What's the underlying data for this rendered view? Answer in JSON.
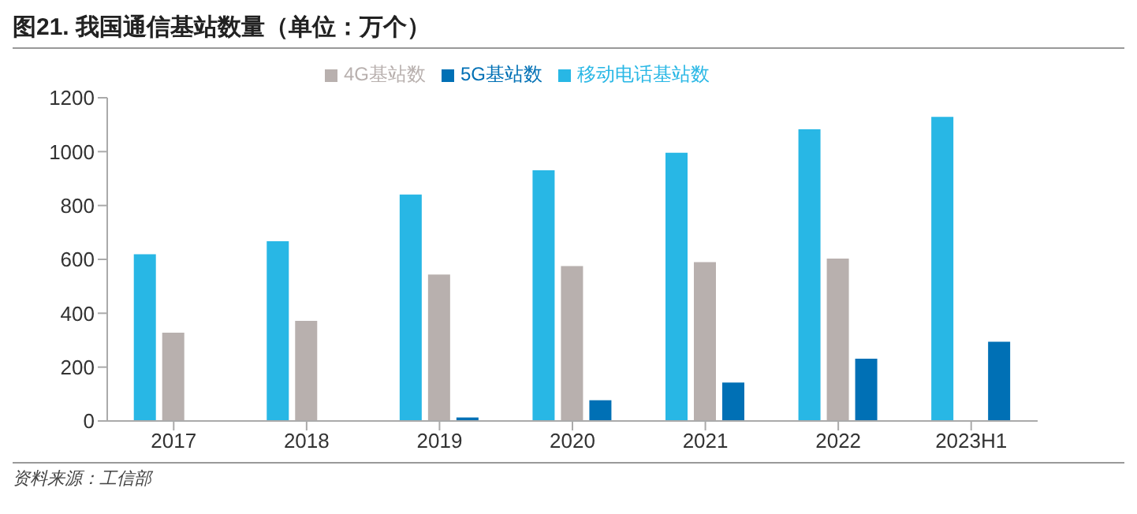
{
  "chart_data": {
    "type": "bar",
    "title": "图21. 我国通信基站数量（单位：万个）",
    "categories": [
      "2017",
      "2018",
      "2019",
      "2020",
      "2021",
      "2022",
      "2023H1"
    ],
    "series": [
      {
        "name": "移动电话基站数",
        "color": "#28b7e5",
        "values": [
          619,
          667,
          841,
          931,
          996,
          1083,
          1129
        ]
      },
      {
        "name": "4G基站数",
        "color": "#b8b0ae",
        "values": [
          328,
          372,
          544,
          575,
          590,
          603,
          null
        ]
      },
      {
        "name": "5G基站数",
        "color": "#0070b5",
        "values": [
          null,
          null,
          13,
          77,
          143,
          231,
          294
        ]
      }
    ],
    "ylim": [
      0,
      1200
    ],
    "yticks": [
      0,
      200,
      400,
      600,
      800,
      1000,
      1200
    ],
    "grid": false,
    "legend": "top",
    "annotations": [
      "资料来源：工信部"
    ]
  }
}
